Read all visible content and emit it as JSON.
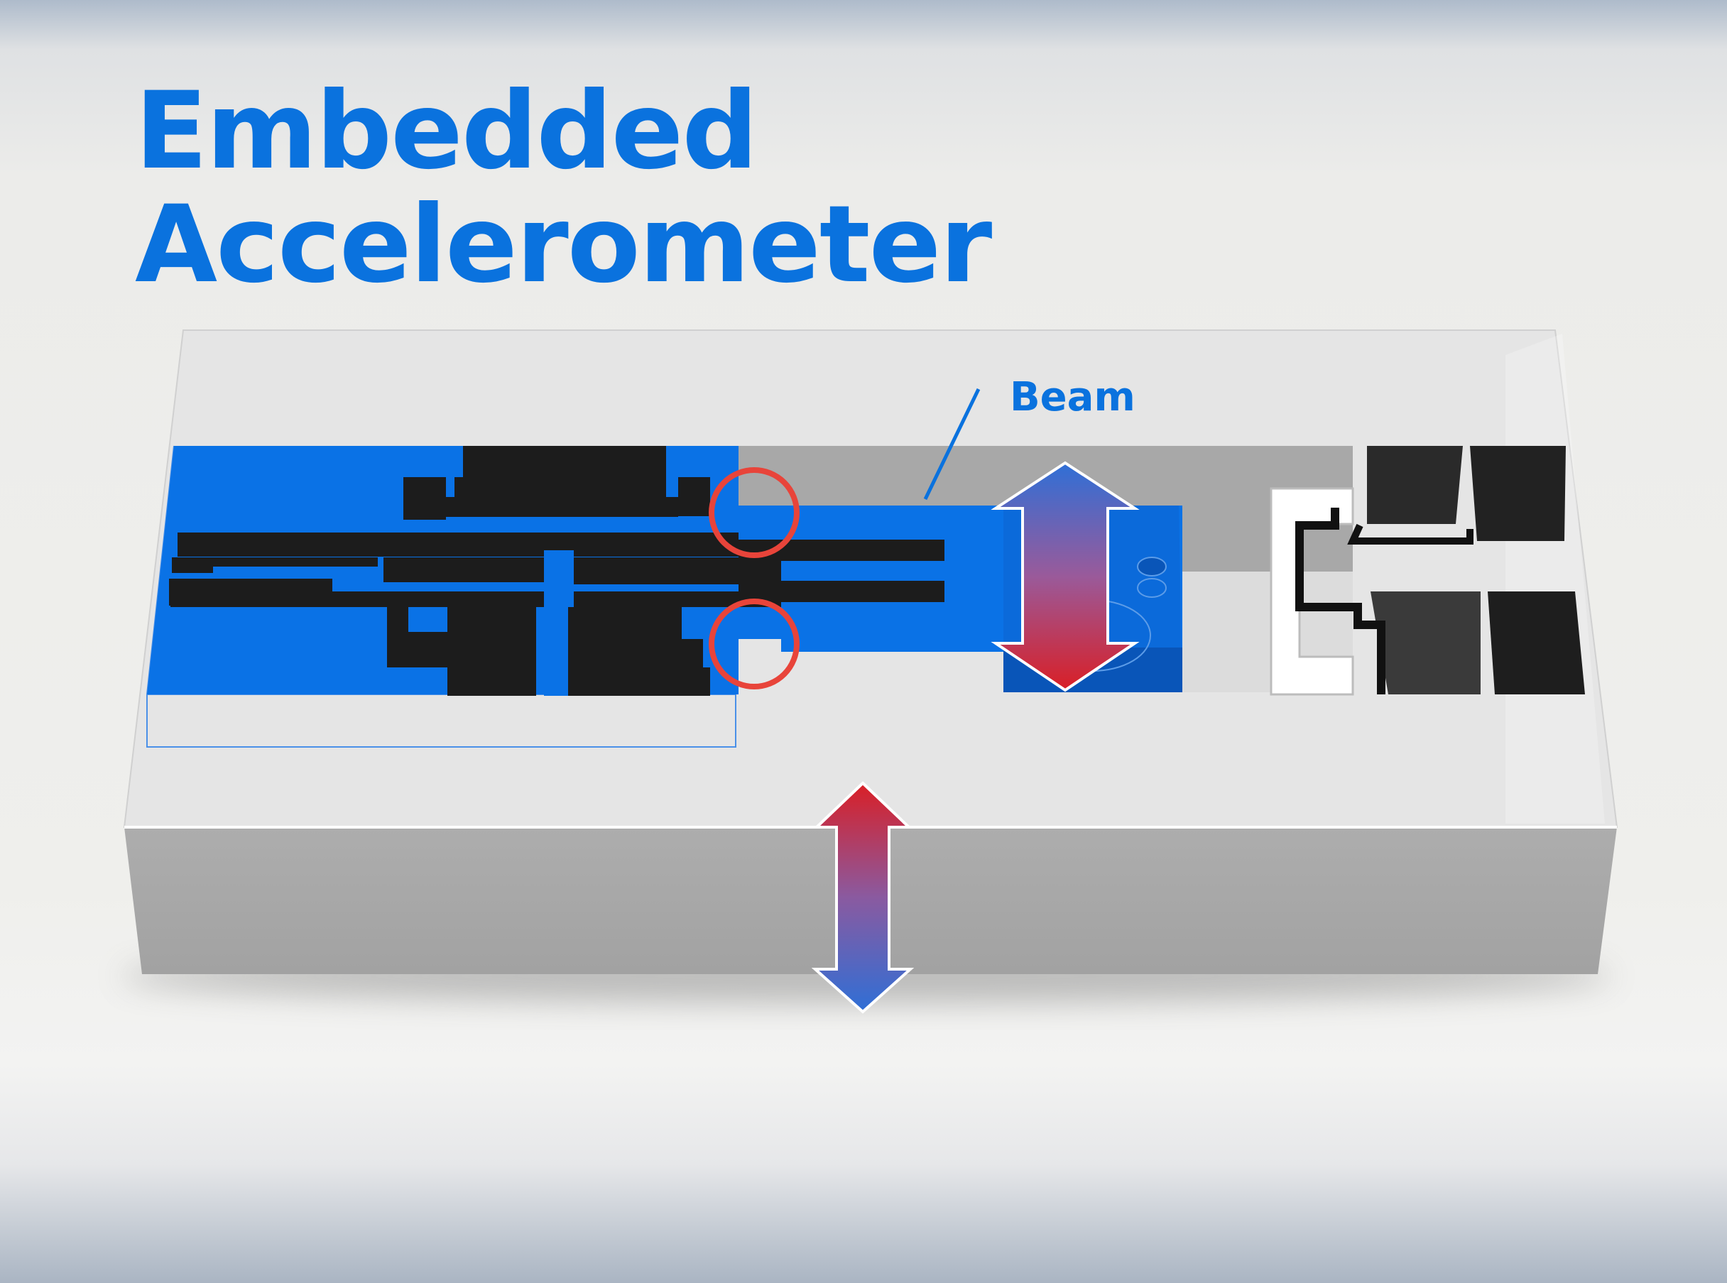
{
  "title": {
    "line1": "Embedded",
    "line2": "Accelerometer"
  },
  "callouts": {
    "beam": "Beam"
  },
  "colors": {
    "title_blue": "#0a72de",
    "structure_blue": "#0a72e6",
    "etched_black": "#1c1c1c",
    "substrate_top": "#e5e5e5",
    "substrate_side": "#a6a6a6",
    "highlight_circle": "#e8443a",
    "arrow_red": "#d91f26",
    "arrow_blue": "#2f6fd6"
  },
  "icons": {
    "beam_motion_arrow": "double-arrow-vertical-icon",
    "substrate_motion_arrow": "double-arrow-vertical-icon",
    "anchor_highlight": "circle-highlight-icon"
  }
}
